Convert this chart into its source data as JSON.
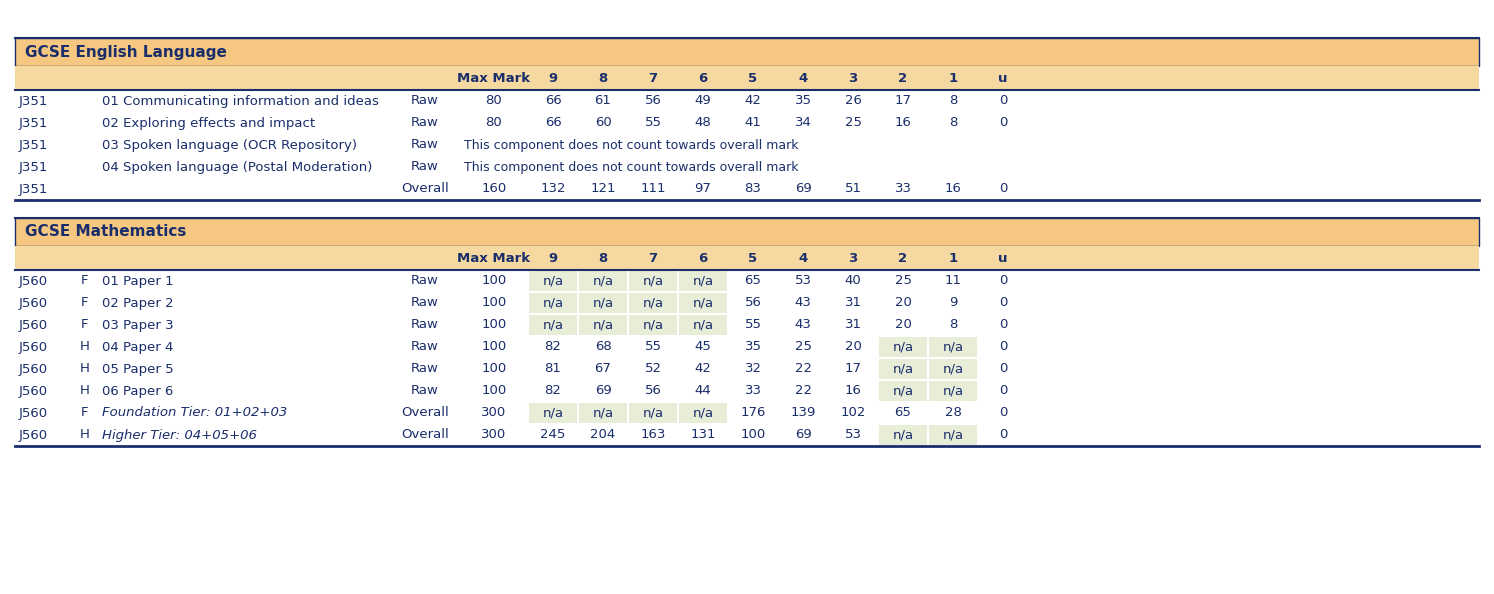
{
  "bg_color": "#ffffff",
  "header_bg": "#f5c780",
  "col_header_bg": "#f5d9a0",
  "na_highlight": "#e8edd8",
  "border_color": "#1a2e6b",
  "text_color": "#1a2e6b",
  "section1_title": "GCSE English Language",
  "section2_title": "GCSE Mathematics",
  "col_headers": [
    "Max Mark",
    "9",
    "8",
    "7",
    "6",
    "5",
    "4",
    "3",
    "2",
    "1",
    "u"
  ],
  "section1_rows": [
    {
      "code": "J351",
      "tier": "",
      "desc": "01 Communicating information and ideas",
      "type": "Raw",
      "max": "80",
      "grades": [
        "66",
        "61",
        "56",
        "49",
        "42",
        "35",
        "26",
        "17",
        "8",
        "0"
      ],
      "spoken": false,
      "italic": false
    },
    {
      "code": "J351",
      "tier": "",
      "desc": "02 Exploring effects and impact",
      "type": "Raw",
      "max": "80",
      "grades": [
        "66",
        "60",
        "55",
        "48",
        "41",
        "34",
        "25",
        "16",
        "8",
        "0"
      ],
      "spoken": false,
      "italic": false
    },
    {
      "code": "J351",
      "tier": "",
      "desc": "03 Spoken language (OCR Repository)",
      "type": "Raw",
      "max": "",
      "grades": [],
      "spoken": true,
      "italic": false
    },
    {
      "code": "J351",
      "tier": "",
      "desc": "04 Spoken language (Postal Moderation)",
      "type": "Raw",
      "max": "",
      "grades": [],
      "spoken": true,
      "italic": false
    },
    {
      "code": "J351",
      "tier": "",
      "desc": "",
      "type": "Overall",
      "max": "160",
      "grades": [
        "132",
        "121",
        "111",
        "97",
        "83",
        "69",
        "51",
        "33",
        "16",
        "0"
      ],
      "spoken": false,
      "italic": false
    }
  ],
  "section2_rows": [
    {
      "code": "J560",
      "tier": "F",
      "desc": "01 Paper 1",
      "type": "Raw",
      "max": "100",
      "grades": [
        "n/a",
        "n/a",
        "n/a",
        "n/a",
        "65",
        "53",
        "40",
        "25",
        "11",
        "0"
      ],
      "na_low": true,
      "na_high": false,
      "italic": false
    },
    {
      "code": "J560",
      "tier": "F",
      "desc": "02 Paper 2",
      "type": "Raw",
      "max": "100",
      "grades": [
        "n/a",
        "n/a",
        "n/a",
        "n/a",
        "56",
        "43",
        "31",
        "20",
        "9",
        "0"
      ],
      "na_low": true,
      "na_high": false,
      "italic": false
    },
    {
      "code": "J560",
      "tier": "F",
      "desc": "03 Paper 3",
      "type": "Raw",
      "max": "100",
      "grades": [
        "n/a",
        "n/a",
        "n/a",
        "n/a",
        "55",
        "43",
        "31",
        "20",
        "8",
        "0"
      ],
      "na_low": true,
      "na_high": false,
      "italic": false
    },
    {
      "code": "J560",
      "tier": "H",
      "desc": "04 Paper 4",
      "type": "Raw",
      "max": "100",
      "grades": [
        "82",
        "68",
        "55",
        "45",
        "35",
        "25",
        "20",
        "n/a",
        "n/a",
        "0"
      ],
      "na_low": false,
      "na_high": true,
      "italic": false
    },
    {
      "code": "J560",
      "tier": "H",
      "desc": "05 Paper 5",
      "type": "Raw",
      "max": "100",
      "grades": [
        "81",
        "67",
        "52",
        "42",
        "32",
        "22",
        "17",
        "n/a",
        "n/a",
        "0"
      ],
      "na_low": false,
      "na_high": true,
      "italic": false
    },
    {
      "code": "J560",
      "tier": "H",
      "desc": "06 Paper 6",
      "type": "Raw",
      "max": "100",
      "grades": [
        "82",
        "69",
        "56",
        "44",
        "33",
        "22",
        "16",
        "n/a",
        "n/a",
        "0"
      ],
      "na_low": false,
      "na_high": true,
      "italic": false
    },
    {
      "code": "J560",
      "tier": "F",
      "desc": "Foundation Tier: 01+02+03",
      "type": "Overall",
      "max": "300",
      "grades": [
        "n/a",
        "n/a",
        "n/a",
        "n/a",
        "176",
        "139",
        "102",
        "65",
        "28",
        "0"
      ],
      "na_low": true,
      "na_high": false,
      "italic": true
    },
    {
      "code": "J560",
      "tier": "H",
      "desc": "Higher Tier: 04+05+06",
      "type": "Overall",
      "max": "300",
      "grades": [
        "245",
        "204",
        "163",
        "131",
        "100",
        "69",
        "53",
        "n/a",
        "n/a",
        "0"
      ],
      "na_low": false,
      "na_high": true,
      "italic": true
    }
  ],
  "spoken_text": "This component does not count towards overall mark",
  "figw": 14.94,
  "figh": 5.94,
  "dpi": 100
}
